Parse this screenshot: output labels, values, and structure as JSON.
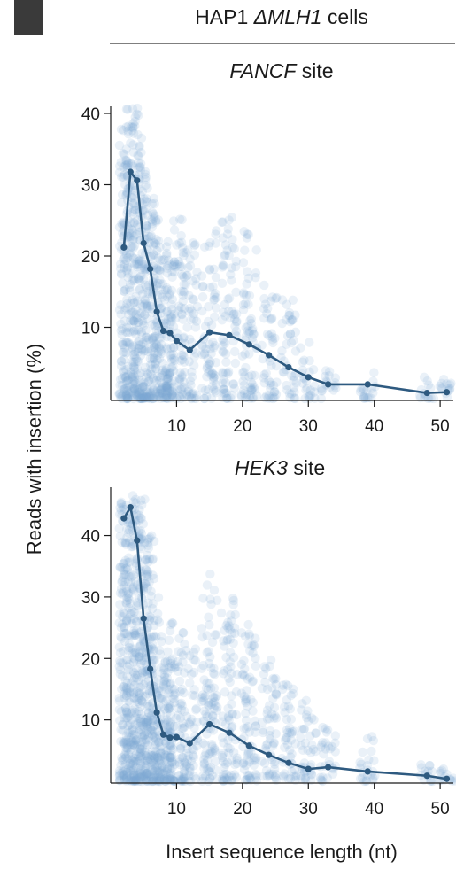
{
  "header": {
    "cell_line_prefix": "HAP1 ",
    "cell_line_italic": "ΔMLH1",
    "cell_line_suffix": " cells"
  },
  "shared_ylabel": "Reads with insertion (%)",
  "shared_xlabel": "Insert sequence length (nt)",
  "colors": {
    "line": "#2e5a80",
    "scatter": "#7fa6d4",
    "axis": "#1a1a1a"
  },
  "chart_data": [
    {
      "type": "scatter",
      "title_italic": "FANCF",
      "title_suffix": " site",
      "xlabel": "Insert sequence length (nt)",
      "ylabel": "Reads with insertion (%)",
      "xlim": [
        0,
        52
      ],
      "ylim": [
        0,
        40
      ],
      "xticks": [
        10,
        20,
        30,
        40,
        50
      ],
      "yticks": [
        10,
        20,
        30,
        40
      ],
      "grid": false,
      "series": [
        {
          "x": [
            2,
            3,
            4,
            5,
            6,
            7,
            8,
            9,
            10,
            12,
            15,
            18,
            21,
            24,
            27,
            30,
            33,
            39,
            48,
            51
          ],
          "y": [
            21.2,
            31.8,
            30.6,
            21.8,
            18.2,
            12.2,
            9.5,
            9.2,
            8.1,
            6.8,
            9.3,
            8.9,
            7.6,
            6.1,
            4.4,
            3.0,
            2.0,
            2.0,
            0.8,
            0.9
          ]
        }
      ],
      "scatter_cloud": {
        "x": [
          2,
          3,
          4,
          5,
          6,
          7,
          8,
          9,
          10,
          12,
          15,
          18,
          21,
          24,
          27,
          30,
          33,
          39,
          48,
          51
        ],
        "y_upper": [
          38,
          41,
          41,
          34,
          30,
          26,
          22,
          20,
          26,
          22,
          24,
          26,
          24,
          16,
          14,
          8,
          6,
          6,
          3,
          3
        ]
      }
    },
    {
      "type": "scatter",
      "title_italic": "HEK3",
      "title_suffix": " site",
      "xlabel": "Insert sequence length (nt)",
      "ylabel": "Reads with insertion (%)",
      "xlim": [
        0,
        52
      ],
      "ylim": [
        0,
        47
      ],
      "xticks": [
        10,
        20,
        30,
        40,
        50
      ],
      "yticks": [
        10,
        20,
        30,
        40
      ],
      "grid": false,
      "series": [
        {
          "x": [
            2,
            3,
            4,
            5,
            6,
            7,
            8,
            9,
            10,
            12,
            15,
            18,
            21,
            24,
            27,
            30,
            33,
            39,
            48,
            51
          ],
          "y": [
            42.8,
            44.6,
            39.2,
            26.5,
            18.3,
            11.2,
            7.6,
            7.1,
            7.2,
            6.2,
            9.3,
            7.9,
            5.8,
            4.3,
            3.0,
            2.0,
            2.3,
            1.6,
            0.9,
            0.4
          ]
        }
      ],
      "scatter_cloud": {
        "x": [
          2,
          3,
          4,
          5,
          6,
          7,
          8,
          9,
          10,
          12,
          15,
          18,
          21,
          24,
          27,
          30,
          33,
          39,
          48,
          51
        ],
        "y_upper": [
          47,
          47,
          47,
          46,
          40,
          30,
          22,
          20,
          26,
          22,
          34,
          30,
          26,
          20,
          16,
          14,
          10,
          8,
          3,
          3
        ]
      }
    }
  ]
}
